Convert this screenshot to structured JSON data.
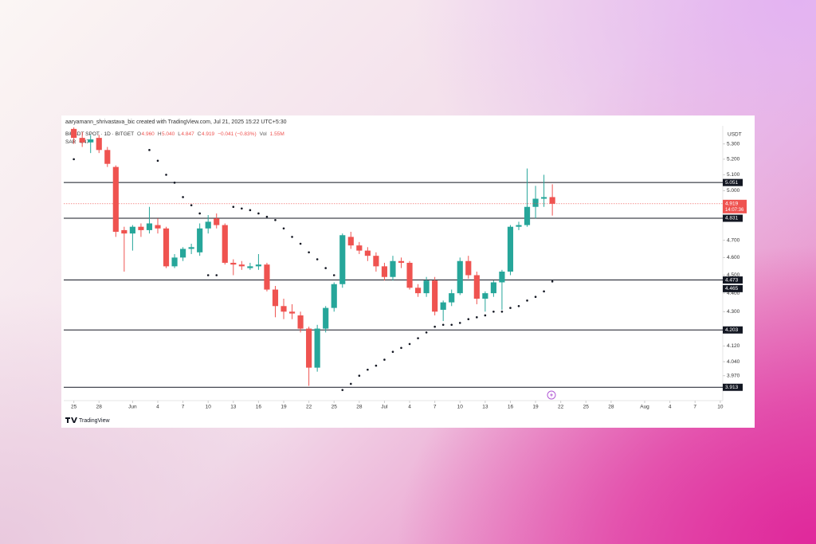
{
  "chart_data": {
    "type": "candlestick",
    "header": "aaryamann_shrivastava_bic created with TradingView.com, Jul 21, 2025 15:22 UTC+5:30",
    "legend": {
      "symbol": "BiUSDT SPOT · 1D · BITGET",
      "ohlc": [
        "O",
        "4.960",
        "H",
        "5.040",
        "L",
        "4.847",
        "C",
        "4.919",
        "−0.041 (−0.83%)",
        "Vol",
        "1.55M"
      ],
      "indicator": [
        "SAR",
        "4.47"
      ]
    },
    "currency": "USDT",
    "brand": "TradingView",
    "countdown": "14:07:36",
    "up_color": "#26a69a",
    "down_color": "#ef5350",
    "sar_color": "#131722",
    "level_color": "#131722",
    "log_scale": true,
    "x": [
      0,
      1,
      2,
      3,
      4,
      5,
      6,
      7,
      8,
      9,
      10,
      11,
      12,
      13,
      14,
      15,
      16,
      17,
      18,
      19,
      20,
      21,
      22,
      23,
      24,
      25,
      26,
      27,
      28,
      29,
      30,
      31,
      32,
      33,
      34,
      35,
      36,
      37,
      38,
      39,
      40,
      41,
      42,
      43,
      44,
      45,
      46,
      47,
      48,
      49,
      50,
      51,
      52,
      53,
      54,
      55,
      56,
      57
    ],
    "open": [
      5.4,
      5.34,
      5.31,
      5.34,
      5.26,
      5.15,
      4.76,
      4.74,
      4.78,
      4.76,
      4.79,
      4.77,
      4.55,
      4.6,
      4.65,
      4.63,
      4.77,
      4.83,
      4.79,
      4.57,
      4.56,
      4.54,
      4.55,
      4.56,
      4.42,
      4.33,
      4.3,
      4.28,
      4.21,
      4.01,
      4.21,
      4.32,
      4.45,
      4.72,
      4.67,
      4.64,
      4.61,
      4.55,
      4.49,
      4.58,
      4.57,
      4.43,
      4.4,
      4.47,
      4.31,
      4.35,
      4.4,
      4.58,
      4.5,
      4.37,
      4.4,
      4.46,
      4.52,
      4.78,
      4.79,
      4.9,
      4.95,
      4.96
    ],
    "high": [
      5.41,
      5.38,
      5.36,
      5.36,
      5.28,
      5.16,
      4.78,
      4.79,
      4.8,
      4.9,
      4.83,
      4.78,
      4.62,
      4.66,
      4.68,
      4.8,
      4.85,
      4.86,
      4.8,
      4.59,
      4.58,
      4.57,
      4.62,
      4.57,
      4.44,
      4.37,
      4.34,
      4.3,
      4.22,
      4.23,
      4.33,
      4.46,
      4.74,
      4.75,
      4.69,
      4.66,
      4.63,
      4.57,
      4.61,
      4.6,
      4.58,
      4.45,
      4.49,
      4.49,
      4.36,
      4.42,
      4.6,
      4.61,
      4.52,
      4.41,
      4.47,
      4.53,
      4.79,
      4.81,
      5.14,
      5.03,
      5.1,
      5.04
    ],
    "low": [
      5.3,
      5.28,
      5.24,
      5.24,
      5.15,
      4.72,
      4.52,
      4.64,
      4.72,
      4.74,
      4.74,
      4.54,
      4.54,
      4.58,
      4.62,
      4.61,
      4.74,
      4.77,
      4.56,
      4.5,
      4.53,
      4.53,
      4.53,
      4.41,
      4.27,
      4.26,
      4.26,
      4.19,
      3.92,
      3.99,
      4.19,
      4.3,
      4.43,
      4.65,
      4.62,
      4.58,
      4.52,
      4.47,
      4.47,
      4.54,
      4.42,
      4.38,
      4.38,
      4.28,
      4.25,
      4.33,
      4.39,
      4.48,
      4.34,
      4.3,
      4.38,
      4.31,
      4.5,
      4.76,
      4.78,
      4.83,
      4.9,
      4.847
    ],
    "close": [
      5.34,
      5.31,
      5.33,
      5.26,
      5.17,
      4.75,
      4.74,
      4.78,
      4.76,
      4.8,
      4.77,
      4.55,
      4.6,
      4.65,
      4.66,
      4.77,
      4.81,
      4.79,
      4.57,
      4.56,
      4.55,
      4.55,
      4.56,
      4.42,
      4.33,
      4.3,
      4.29,
      4.21,
      4.01,
      4.21,
      4.32,
      4.45,
      4.73,
      4.67,
      4.64,
      4.61,
      4.55,
      4.49,
      4.58,
      4.57,
      4.43,
      4.4,
      4.47,
      4.3,
      4.35,
      4.4,
      4.58,
      4.5,
      4.37,
      4.4,
      4.46,
      4.52,
      4.78,
      4.79,
      4.9,
      4.95,
      4.96,
      4.919
    ],
    "sar": [
      5.2,
      null,
      null,
      null,
      null,
      null,
      null,
      null,
      null,
      5.26,
      5.19,
      5.1,
      5.05,
      4.96,
      4.91,
      4.86,
      4.5,
      4.5,
      null,
      4.9,
      4.89,
      4.88,
      4.86,
      4.84,
      4.82,
      4.77,
      4.72,
      4.68,
      4.63,
      4.59,
      4.54,
      4.5,
      3.9,
      3.93,
      3.97,
      4.0,
      4.02,
      4.05,
      4.09,
      4.11,
      4.13,
      4.16,
      4.19,
      4.22,
      4.23,
      4.23,
      4.24,
      4.26,
      4.27,
      4.28,
      4.3,
      4.3,
      4.32,
      4.33,
      4.36,
      4.38,
      4.41,
      4.465
    ],
    "levels": [
      5.051,
      4.831,
      4.473,
      4.203,
      3.913
    ],
    "xlim": [
      -1.2,
      77.3
    ],
    "xticks": [
      {
        "value": 0,
        "label": "25"
      },
      {
        "value": 3,
        "label": "28"
      },
      {
        "value": 7,
        "label": "Jun"
      },
      {
        "value": 10,
        "label": "4"
      },
      {
        "value": 13,
        "label": "7"
      },
      {
        "value": 16,
        "label": "10"
      },
      {
        "value": 19,
        "label": "13"
      },
      {
        "value": 22,
        "label": "16"
      },
      {
        "value": 25,
        "label": "19"
      },
      {
        "value": 28,
        "label": "22"
      },
      {
        "value": 31,
        "label": "25"
      },
      {
        "value": 34,
        "label": "28"
      },
      {
        "value": 37,
        "label": "Jul"
      },
      {
        "value": 40,
        "label": "4"
      },
      {
        "value": 43,
        "label": "7"
      },
      {
        "value": 46,
        "label": "10"
      },
      {
        "value": 49,
        "label": "13"
      },
      {
        "value": 52,
        "label": "16"
      },
      {
        "value": 55,
        "label": "19"
      },
      {
        "value": 58,
        "label": "22"
      },
      {
        "value": 61,
        "label": "25"
      },
      {
        "value": 64,
        "label": "28"
      },
      {
        "value": 68,
        "label": "Aug"
      },
      {
        "value": 71,
        "label": "4"
      },
      {
        "value": 74,
        "label": "7"
      },
      {
        "value": 77,
        "label": "10"
      }
    ],
    "ylim": [
      3.86,
      5.41
    ],
    "yticks": [
      {
        "value": 5.3,
        "label": "5.300"
      },
      {
        "value": 5.2,
        "label": "5.200"
      },
      {
        "value": 5.1,
        "label": "5.100"
      },
      {
        "value": 5,
        "label": "5.000"
      },
      {
        "value": 4.7,
        "label": "4.700"
      },
      {
        "value": 4.6,
        "label": "4.600"
      },
      {
        "value": 4.5,
        "label": "4.500"
      },
      {
        "value": 4.4,
        "label": "4.400"
      },
      {
        "value": 4.3,
        "label": "4.300"
      },
      {
        "value": 4.12,
        "label": "4.120"
      },
      {
        "value": 4.04,
        "label": "4.040"
      },
      {
        "value": 3.97,
        "label": "3.970"
      }
    ]
  }
}
